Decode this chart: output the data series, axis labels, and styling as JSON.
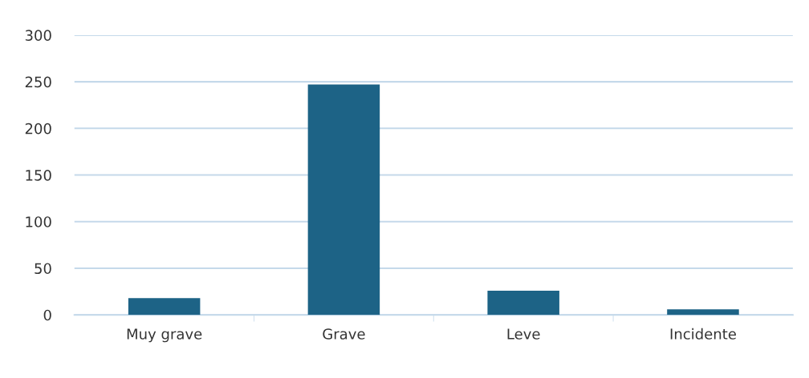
{
  "chart_data": {
    "type": "bar",
    "categories": [
      "Muy grave",
      "Grave",
      "Leve",
      "Incidente"
    ],
    "values": [
      18,
      247,
      26,
      6
    ],
    "color": "#1d6386",
    "ylim": [
      0,
      300
    ],
    "yticks": [
      0,
      50,
      100,
      150,
      200,
      250,
      300
    ],
    "grid": "y"
  }
}
